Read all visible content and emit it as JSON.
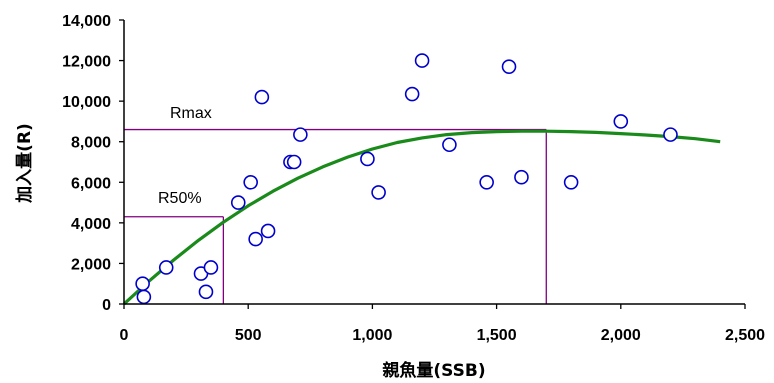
{
  "chart_data": {
    "type": "scatter",
    "xlabel": "親魚量(SSB)",
    "ylabel": "加入量(R)",
    "xlim": [
      0,
      2500
    ],
    "ylim": [
      0,
      14000
    ],
    "x_ticks": [
      "0",
      "500",
      "1,000",
      "1,500",
      "2,000",
      "2,500"
    ],
    "y_ticks": [
      "0",
      "2,000",
      "4,000",
      "6,000",
      "8,000",
      "10,000",
      "12,000",
      "14,000"
    ],
    "grid": false,
    "legend": "none",
    "series": [
      {
        "kind": "scatter",
        "marker": "open-circle",
        "color": "#0000cc",
        "points": [
          {
            "x": 75,
            "y": 1000
          },
          {
            "x": 80,
            "y": 350
          },
          {
            "x": 170,
            "y": 1800
          },
          {
            "x": 310,
            "y": 1500
          },
          {
            "x": 330,
            "y": 600
          },
          {
            "x": 350,
            "y": 1800
          },
          {
            "x": 460,
            "y": 5000
          },
          {
            "x": 510,
            "y": 6000
          },
          {
            "x": 530,
            "y": 3200
          },
          {
            "x": 555,
            "y": 10200
          },
          {
            "x": 580,
            "y": 3600
          },
          {
            "x": 670,
            "y": 7000
          },
          {
            "x": 685,
            "y": 7000
          },
          {
            "x": 710,
            "y": 8350
          },
          {
            "x": 980,
            "y": 7150
          },
          {
            "x": 1025,
            "y": 5500
          },
          {
            "x": 1160,
            "y": 10350
          },
          {
            "x": 1200,
            "y": 12000
          },
          {
            "x": 1310,
            "y": 7850
          },
          {
            "x": 1460,
            "y": 6000
          },
          {
            "x": 1550,
            "y": 11700
          },
          {
            "x": 1600,
            "y": 6250
          },
          {
            "x": 1800,
            "y": 6000
          },
          {
            "x": 2000,
            "y": 9000
          },
          {
            "x": 2200,
            "y": 8350
          }
        ]
      },
      {
        "kind": "line",
        "description": "fitted stock-recruitment curve",
        "color": "#1a8a1a",
        "points": [
          {
            "x": 0,
            "y": 0
          },
          {
            "x": 100,
            "y": 1120
          },
          {
            "x": 200,
            "y": 2170
          },
          {
            "x": 300,
            "y": 3140
          },
          {
            "x": 400,
            "y": 4030
          },
          {
            "x": 500,
            "y": 4840
          },
          {
            "x": 600,
            "y": 5560
          },
          {
            "x": 700,
            "y": 6200
          },
          {
            "x": 800,
            "y": 6760
          },
          {
            "x": 900,
            "y": 7240
          },
          {
            "x": 1000,
            "y": 7640
          },
          {
            "x": 1100,
            "y": 7960
          },
          {
            "x": 1200,
            "y": 8190
          },
          {
            "x": 1300,
            "y": 8350
          },
          {
            "x": 1400,
            "y": 8450
          },
          {
            "x": 1500,
            "y": 8500
          },
          {
            "x": 1600,
            "y": 8520
          },
          {
            "x": 1700,
            "y": 8520
          },
          {
            "x": 1800,
            "y": 8500
          },
          {
            "x": 1900,
            "y": 8460
          },
          {
            "x": 2000,
            "y": 8400
          },
          {
            "x": 2100,
            "y": 8330
          },
          {
            "x": 2200,
            "y": 8250
          },
          {
            "x": 2300,
            "y": 8150
          },
          {
            "x": 2400,
            "y": 8000
          }
        ]
      }
    ],
    "reference_lines": [
      {
        "label": "Rmax",
        "y": 8600,
        "x_end": 1700,
        "color": "#800080"
      },
      {
        "label": "R50%",
        "y": 4300,
        "x_end": 400,
        "color": "#800080"
      }
    ],
    "annotations": [
      "Rmax",
      "R50%"
    ]
  }
}
